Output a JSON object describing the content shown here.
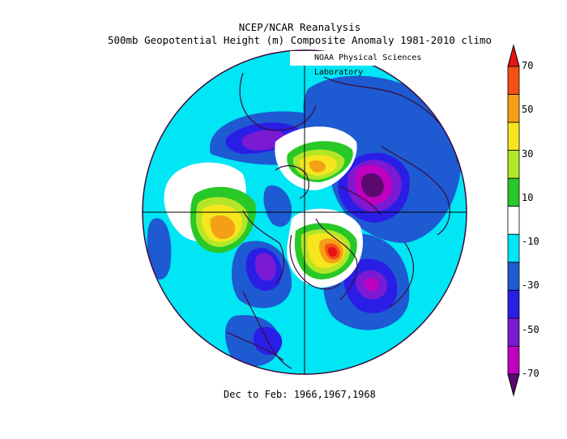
{
  "title_line1": "NCEP/NCAR Reanalysis",
  "title_line2": "500mb Geopotential Height (m) Composite Anomaly 1981-2010 climo",
  "credit": "NOAA Physical Sciences Laboratory",
  "footer": "Dec to Feb: 1966,1967,1968",
  "colors": {
    "deep_purple": "#5a0a6e",
    "magenta": "#c000c0",
    "violet": "#7a1ad2",
    "blue_purple": "#2a1ee6",
    "blue": "#1e5ad2",
    "cyan": "#00e6f5",
    "white": "#ffffff",
    "green": "#28c828",
    "yellow_green": "#b4e628",
    "yellow": "#f5e61e",
    "orange": "#f5a014",
    "red_orange": "#f55014",
    "red": "#e61414",
    "land_outline": "#3c0a3c"
  },
  "colorbar": {
    "labels": [
      "70",
      "50",
      "30",
      "10",
      "-10",
      "-30",
      "-50",
      "-70"
    ],
    "bins": [
      "#e61414",
      "#f55014",
      "#f5a014",
      "#f5e61e",
      "#b4e628",
      "#28c828",
      "#ffffff",
      "#00e6f5",
      "#1e5ad2",
      "#2a1ee6",
      "#7a1ad2",
      "#c000c0",
      "#5a0a6e"
    ]
  }
}
